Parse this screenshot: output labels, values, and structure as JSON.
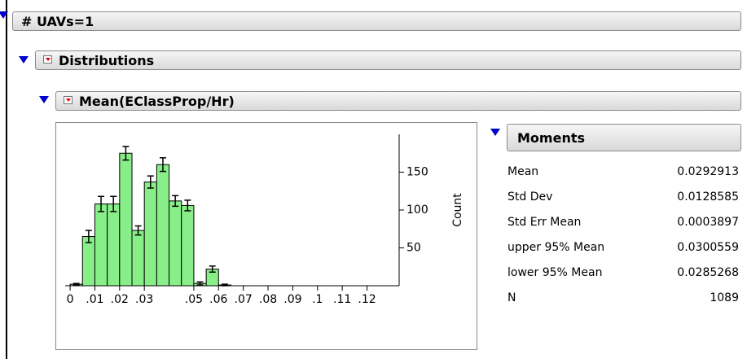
{
  "header": {
    "title": "# UAVs=1"
  },
  "distributions": {
    "title": "Distributions"
  },
  "variable": {
    "title": "Mean(EClassProp/Hr)"
  },
  "chart_data": {
    "type": "histogram",
    "y_label": "Count",
    "bins": [
      0,
      0.005,
      0.01,
      0.015,
      0.02,
      0.025,
      0.03,
      0.035,
      0.04,
      0.045,
      0.05,
      0.055,
      0.06,
      0.065
    ],
    "values": [
      2,
      65,
      108,
      108,
      175,
      73,
      137,
      160,
      112,
      106,
      3,
      22,
      1
    ],
    "errors": [
      1,
      8,
      10,
      10,
      9,
      6,
      8,
      9,
      7,
      7,
      2,
      4,
      1
    ],
    "color": "#88ee88",
    "xlim": [
      -0.002,
      0.133
    ],
    "ylim": [
      0,
      200
    ],
    "xticks": [
      0,
      {
        "value": 0.01,
        "label": ".01"
      },
      {
        "value": 0.02,
        "label": ".02"
      },
      {
        "value": 0.03,
        "label": ".03"
      },
      {
        "value": 0.05,
        "label": ".05"
      },
      {
        "value": 0.06,
        "label": ".06"
      },
      {
        "value": 0.07,
        "label": ".07"
      },
      {
        "value": 0.08,
        "label": ".08"
      },
      {
        "value": 0.09,
        "label": ".09"
      },
      {
        "value": 0.1,
        "label": ".1"
      },
      {
        "value": 0.11,
        "label": ".11"
      },
      {
        "value": 0.12,
        "label": ".12"
      }
    ],
    "yticks": [
      50,
      100,
      150
    ]
  },
  "moments": {
    "title": "Moments",
    "rows": [
      [
        "Mean",
        "0.0292913"
      ],
      [
        "Std Dev",
        "0.0128585"
      ],
      [
        "Std Err Mean",
        "0.0003897"
      ],
      [
        "upper 95% Mean",
        "0.0300559"
      ],
      [
        "lower 95% Mean",
        "0.0285268"
      ],
      [
        "N",
        "1089"
      ]
    ]
  }
}
